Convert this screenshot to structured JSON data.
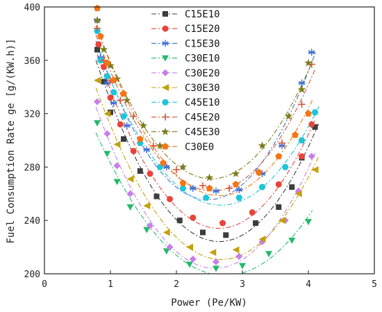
{
  "chart_data": {
    "type": "scatter",
    "xlabel": "Power (Pe/KW)",
    "ylabel": "Fuel Consumption Rate ge [g/(KW.h)]",
    "xlim": [
      0,
      5
    ],
    "ylim": [
      200,
      400
    ],
    "xticks": [
      "0",
      "1",
      "2",
      "3",
      "4",
      "5"
    ],
    "yticks": [
      "200",
      "240",
      "280",
      "320",
      "360",
      "400"
    ],
    "fit_lines": "dash-dot",
    "legend_position": "top-center",
    "series": [
      {
        "name": "C15E10",
        "color": "#3c3c3c",
        "marker": "square",
        "x": [
          0.8,
          0.9,
          1.0,
          1.2,
          1.45,
          1.7,
          2.05,
          2.4,
          2.75,
          3.2,
          3.55,
          3.75,
          3.9,
          4.1
        ],
        "y": [
          368,
          344,
          321,
          301,
          277,
          258,
          240,
          231,
          229,
          238,
          250,
          265,
          287,
          310
        ]
      },
      {
        "name": "C15E20",
        "color": "#e8443a",
        "marker": "circle",
        "x": [
          0.82,
          0.9,
          1.0,
          1.15,
          1.35,
          1.6,
          1.9,
          2.25,
          2.7,
          3.15,
          3.55,
          3.9,
          4.05
        ],
        "y": [
          372,
          355,
          332,
          312,
          292,
          275,
          256,
          242,
          238,
          246,
          267,
          288,
          312
        ]
      },
      {
        "name": "C15E30",
        "color": "#3c6fd4",
        "marker": "asterisk",
        "x": [
          0.8,
          0.85,
          0.95,
          1.05,
          1.25,
          1.55,
          1.85,
          2.25,
          2.6,
          2.95,
          3.3,
          3.6,
          3.9,
          4.05
        ],
        "y": [
          390,
          362,
          343,
          328,
          311,
          293,
          280,
          264,
          262,
          263,
          275,
          296,
          343,
          366
        ]
      },
      {
        "name": "C30E10",
        "color": "#27b86c",
        "marker": "triangle-down",
        "x": [
          0.8,
          0.95,
          1.1,
          1.3,
          1.55,
          1.85,
          2.2,
          2.6,
          3.0,
          3.4,
          3.75,
          4.0
        ],
        "y": [
          313,
          290,
          269,
          250,
          233,
          217,
          207,
          204,
          206,
          215,
          225,
          239
        ]
      },
      {
        "name": "C30E20",
        "color": "#c67ee8",
        "marker": "diamond",
        "x": [
          0.8,
          0.95,
          1.1,
          1.3,
          1.6,
          1.9,
          2.25,
          2.6,
          2.95,
          3.3,
          3.65,
          3.85,
          4.05
        ],
        "y": [
          329,
          305,
          281,
          260,
          236,
          220,
          211,
          209,
          213,
          224,
          240,
          262,
          288
        ]
      },
      {
        "name": "C30E30",
        "color": "#c2a00c",
        "marker": "triangle-left",
        "x": [
          0.8,
          0.95,
          1.1,
          1.3,
          1.55,
          1.85,
          2.2,
          2.55,
          2.9,
          3.3,
          3.6,
          3.85,
          4.1
        ],
        "y": [
          345,
          320,
          297,
          271,
          251,
          231,
          220,
          216,
          218,
          226,
          240,
          260,
          278
        ]
      },
      {
        "name": "C45E10",
        "color": "#1fc4d8",
        "marker": "hexagon",
        "x": [
          0.8,
          0.85,
          0.95,
          1.05,
          1.2,
          1.45,
          1.75,
          2.1,
          2.45,
          2.95,
          3.3,
          3.65,
          3.9,
          4.1
        ],
        "y": [
          382,
          360,
          348,
          336,
          318,
          298,
          280,
          264,
          257,
          257,
          265,
          280,
          300,
          321
        ]
      },
      {
        "name": "C45E20",
        "color": "#d2553f",
        "marker": "plus",
        "x": [
          0.8,
          0.9,
          1.0,
          1.15,
          1.35,
          1.65,
          2.0,
          2.4,
          2.8,
          3.25,
          3.6,
          3.9,
          4.05
        ],
        "y": [
          384,
          360,
          345,
          330,
          318,
          296,
          278,
          266,
          264,
          276,
          298,
          327,
          357
        ]
      },
      {
        "name": "C45E30",
        "color": "#7a7d1e",
        "marker": "star",
        "x": [
          0.8,
          0.9,
          1.0,
          1.1,
          1.25,
          1.5,
          1.75,
          2.1,
          2.5,
          2.9,
          3.3,
          3.7,
          3.9,
          4.0
        ],
        "y": [
          390,
          368,
          356,
          346,
          330,
          311,
          296,
          280,
          272,
          275,
          296,
          318,
          338,
          358
        ]
      },
      {
        "name": "C30E0",
        "color": "#f57414",
        "marker": "pentagon",
        "x": [
          0.8,
          0.85,
          0.95,
          1.05,
          1.2,
          1.45,
          1.8,
          2.1,
          2.5,
          2.9,
          3.25,
          3.55,
          3.8,
          4.0
        ],
        "y": [
          399,
          378,
          358,
          345,
          335,
          301,
          283,
          268,
          264,
          267,
          276,
          288,
          304,
          320
        ]
      }
    ]
  }
}
